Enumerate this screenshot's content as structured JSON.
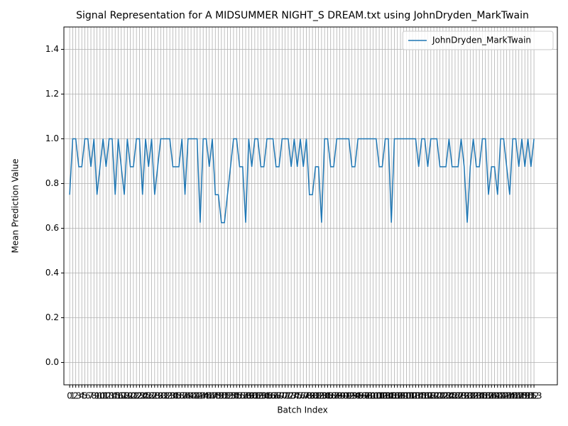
{
  "chart_data": {
    "type": "line",
    "title": "Signal Representation for A MIDSUMMER NIGHT_S DREAM.txt using JohnDryden_MarkTwain",
    "xlabel": "Batch Index",
    "ylabel": "Mean Prediction Value",
    "x": [
      0,
      1,
      2,
      3,
      4,
      5,
      6,
      7,
      8,
      9,
      10,
      11,
      12,
      13,
      14,
      15,
      16,
      17,
      18,
      19,
      20,
      21,
      22,
      23,
      24,
      25,
      26,
      27,
      28,
      29,
      30,
      31,
      32,
      33,
      34,
      35,
      36,
      37,
      38,
      39,
      40,
      41,
      42,
      43,
      44,
      45,
      46,
      47,
      48,
      49,
      50,
      51,
      52,
      53,
      54,
      55,
      56,
      57,
      58,
      59,
      60,
      61,
      62,
      63,
      64,
      65,
      66,
      67,
      68,
      69,
      70,
      71,
      72,
      73,
      74,
      75,
      76,
      77,
      78,
      79,
      80,
      81,
      82,
      83,
      84,
      85,
      86,
      87,
      88,
      89,
      90,
      91,
      92,
      93,
      94,
      95,
      96,
      97,
      98,
      99,
      100,
      101,
      102,
      103,
      104,
      105,
      106,
      107,
      108,
      109,
      110,
      111,
      112,
      113,
      114,
      115,
      116,
      117,
      118,
      119,
      120,
      121,
      122,
      123,
      124,
      125,
      126,
      127,
      128,
      129,
      130,
      131,
      132,
      133,
      134,
      135,
      136,
      137,
      138,
      139,
      140,
      141,
      142,
      143,
      144,
      145,
      146,
      147,
      148,
      149,
      150,
      151,
      152,
      153
    ],
    "series": [
      {
        "name": "JohnDryden_MarkTwain",
        "color": "#1f77b4",
        "values": [
          0.75,
          1,
          1,
          0.875,
          0.875,
          1,
          1,
          0.875,
          1,
          0.75,
          0.875,
          1,
          0.875,
          1,
          1,
          0.75,
          1,
          0.875,
          0.75,
          1,
          0.875,
          0.875,
          1,
          1,
          0.75,
          1,
          0.875,
          1,
          0.75,
          0.875,
          1,
          1,
          1,
          1,
          0.875,
          0.875,
          0.875,
          1,
          0.75,
          1,
          1,
          1,
          1,
          0.625,
          1,
          1,
          0.875,
          1,
          0.75,
          0.75,
          0.625,
          0.625,
          0.75,
          0.875,
          1,
          1,
          0.875,
          0.875,
          0.625,
          1,
          0.875,
          1,
          1,
          0.875,
          0.875,
          1,
          1,
          1,
          0.875,
          0.875,
          1,
          1,
          1,
          0.875,
          1,
          0.875,
          1,
          0.875,
          1,
          0.75,
          0.75,
          0.875,
          0.875,
          0.625,
          1,
          1,
          0.875,
          0.875,
          1,
          1,
          1,
          1,
          1,
          0.875,
          0.875,
          1,
          1,
          1,
          1,
          1,
          1,
          1,
          0.875,
          0.875,
          1,
          1,
          0.625,
          1,
          1,
          1,
          1,
          1,
          1,
          1,
          1,
          0.875,
          1,
          1,
          0.875,
          1,
          1,
          1,
          0.875,
          0.875,
          0.875,
          1,
          0.875,
          0.875,
          0.875,
          1,
          0.875,
          0.625,
          0.875,
          1,
          0.875,
          0.875,
          1,
          1,
          0.75,
          0.875,
          0.875,
          0.75,
          1,
          1,
          0.875,
          0.75,
          1,
          1,
          0.875,
          1,
          0.875,
          1,
          0.875,
          1
        ]
      }
    ],
    "xlim": [
      -1.9,
      160.7
    ],
    "ylim": [
      -0.1,
      1.5
    ],
    "xticks": [
      0,
      1,
      2,
      3,
      4,
      5,
      6,
      7,
      8,
      9,
      10,
      11,
      12,
      13,
      14,
      15,
      16,
      17,
      18,
      19,
      20,
      21,
      22,
      23,
      24,
      25,
      26,
      27,
      28,
      29,
      30,
      31,
      32,
      33,
      34,
      35,
      36,
      37,
      38,
      39,
      40,
      41,
      42,
      43,
      44,
      45,
      46,
      47,
      48,
      49,
      50,
      51,
      52,
      53,
      54,
      55,
      56,
      57,
      58,
      59,
      60,
      61,
      62,
      63,
      64,
      65,
      66,
      67,
      68,
      69,
      70,
      71,
      72,
      73,
      74,
      75,
      76,
      77,
      78,
      79,
      80,
      81,
      82,
      83,
      84,
      85,
      86,
      87,
      88,
      89,
      90,
      91,
      92,
      93,
      94,
      95,
      96,
      97,
      98,
      99,
      100,
      101,
      102,
      103,
      104,
      105,
      106,
      107,
      108,
      109,
      110,
      111,
      112,
      113,
      114,
      115,
      116,
      117,
      118,
      119,
      120,
      121,
      122,
      123,
      124,
      125,
      126,
      127,
      128,
      129,
      130,
      131,
      132,
      133,
      134,
      135,
      136,
      137,
      138,
      139,
      140,
      141,
      142,
      143,
      144,
      145,
      146,
      147,
      148,
      149,
      150,
      151,
      152,
      153
    ],
    "yticks": [
      {
        "value": 0,
        "label": "0.0"
      },
      0.2,
      0.4,
      0.6,
      0.8,
      {
        "value": 1,
        "label": "1.0"
      },
      1.2,
      1.4
    ],
    "grid": true,
    "legend": "upper right"
  }
}
